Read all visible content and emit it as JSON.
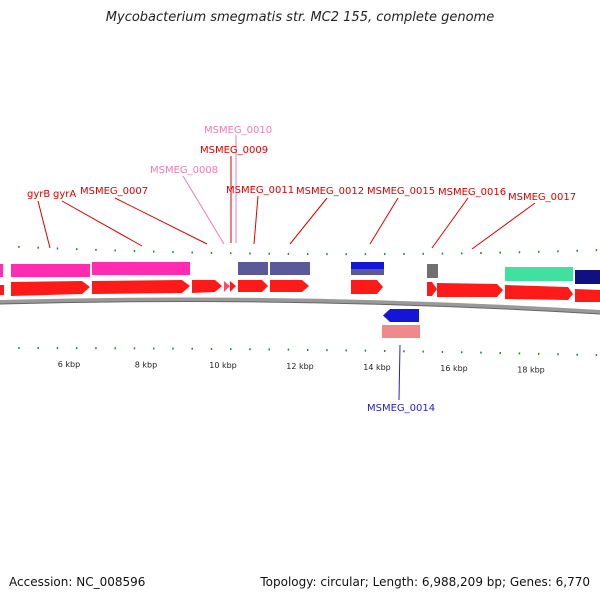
{
  "title": "Mycobacterium smegmatis str. MC2 155, complete genome",
  "footer": {
    "accession": "Accession: NC_008596",
    "summary": "Topology: circular; Length: 6,988,209 bp; Genes: 6,770"
  },
  "colors": {
    "cds_red": "#ff1a1a",
    "gyrase_magenta": "#ff2bb0",
    "slate_blue": "#5a5a9a",
    "blue": "#1515d8",
    "salmon": "#f08a8a",
    "gray": "#707070",
    "teal": "#40e0a0",
    "navy": "#101080",
    "tick_green": "#2a8a2a",
    "label_red": "#dd0000",
    "label_pink": "#f07ab8",
    "label_blue": "#2222cc"
  },
  "axis": {
    "ticks": [
      {
        "kbp": 6,
        "label": "6 kbp"
      },
      {
        "kbp": 8,
        "label": "8 kbp"
      },
      {
        "kbp": 10,
        "label": "10 kbp"
      },
      {
        "kbp": 12,
        "label": "12 kbp"
      },
      {
        "kbp": 14,
        "label": "14 kbp"
      },
      {
        "kbp": 16,
        "label": "16 kbp"
      },
      {
        "kbp": 18,
        "label": "18 kbp"
      }
    ]
  },
  "labels": [
    {
      "text": "gyrB",
      "color": "label_red"
    },
    {
      "text": "gyrA",
      "color": "label_red"
    },
    {
      "text": "MSMEG_0007",
      "color": "label_red"
    },
    {
      "text": "MSMEG_0008",
      "color": "label_pink"
    },
    {
      "text": "MSMEG_0010",
      "color": "label_pink"
    },
    {
      "text": "MSMEG_0009",
      "color": "label_red"
    },
    {
      "text": "MSMEG_0011",
      "color": "label_red"
    },
    {
      "text": "MSMEG_0012",
      "color": "label_red"
    },
    {
      "text": "MSMEG_0015",
      "color": "label_red"
    },
    {
      "text": "MSMEG_0016",
      "color": "label_red"
    },
    {
      "text": "MSMEG_0017",
      "color": "label_red"
    },
    {
      "text": "MSMEG_0014",
      "color": "label_blue"
    }
  ]
}
